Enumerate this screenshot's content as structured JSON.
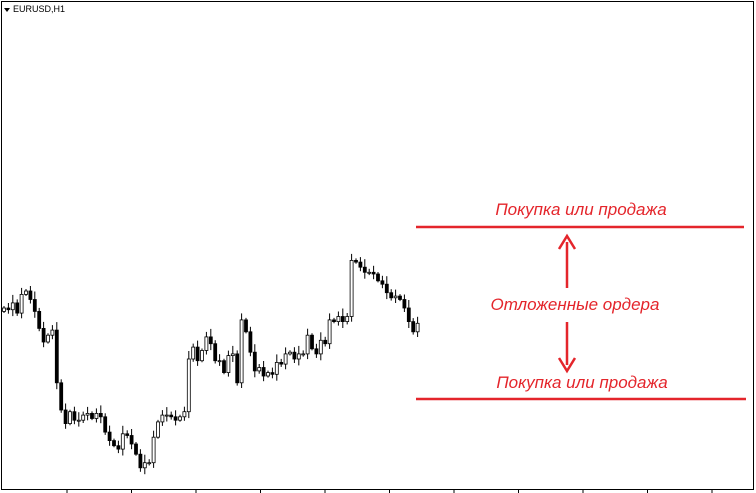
{
  "chart": {
    "symbol": "EURUSD,H1"
  },
  "annotations": {
    "top_label": "Покупка или продажа",
    "middle_label": "Отложенные ордера",
    "bottom_label": "Покупка или продажа",
    "color": "#e4252b"
  },
  "chart_data": {
    "type": "candlestick",
    "series": [
      {
        "close": [
          1,
          0.9,
          1.3,
          0.7,
          1.8,
          2,
          1.5,
          0.8,
          -0.2,
          -1,
          -0.6,
          -0.3,
          -3.4,
          -5,
          -5.8,
          -5.1,
          -5.6,
          -5.6,
          -5.3,
          -5.2,
          -5.5,
          -5.2,
          -5.4,
          -6.3,
          -6.8,
          -7.1,
          -7.3,
          -6.4,
          -6.5,
          -7,
          -7.6,
          -8.4,
          -8.1,
          -8.1,
          -6.6,
          -5.7,
          -5.3,
          -5.3,
          -5.4,
          -5.6,
          -5.4,
          -5.1,
          -2,
          -1.3,
          -2.1,
          -1.5,
          -0.7,
          -1.1,
          -2.1,
          -2.1,
          -2.8,
          -1.8,
          -1.7,
          -3.4,
          0.3,
          -0.4,
          -1.6,
          -2.7,
          -2.5,
          -3,
          -2.8,
          -2.9,
          -2.2,
          -2.3,
          -1.7,
          -1.6,
          -2,
          -1.7,
          -1.7,
          -0.6,
          -1.4,
          -1.7,
          -0.9,
          -1.1,
          0.3,
          0.2,
          0.5,
          0.2,
          0.5,
          3.8,
          3.7,
          3.4,
          3.1,
          3.1,
          3,
          2.6,
          2.4,
          1.9,
          1.6,
          1.7,
          1.5,
          1,
          0.2,
          -0.4,
          0.1
        ]
      }
    ]
  }
}
